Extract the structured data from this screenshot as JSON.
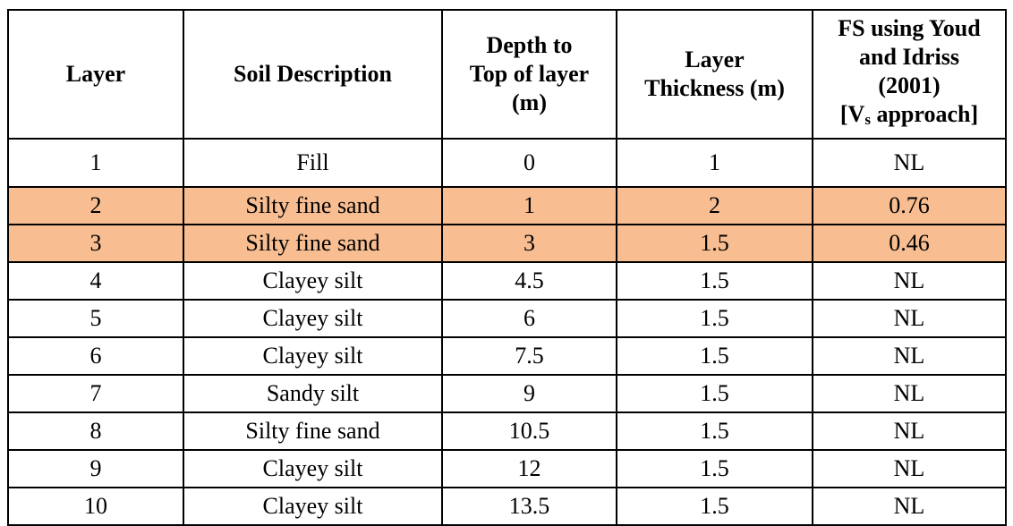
{
  "table": {
    "headers": {
      "layer": "Layer",
      "soil_description": "Soil Description",
      "depth_line1": "Depth to",
      "depth_line2": "Top of layer",
      "depth_line3": "(m)",
      "thickness_line1": "Layer",
      "thickness_line2": "Thickness (m)",
      "fs_line1": "FS using Youd",
      "fs_line2": "and Idriss",
      "fs_line3": "(2001)",
      "fs_line4_prefix": "[V",
      "fs_line4_sub": "s",
      "fs_line4_suffix": " approach]"
    },
    "highlight_color": "#f8be92",
    "rows": [
      {
        "layer": "1",
        "soil": "Fill",
        "depth": "0",
        "thickness": "1",
        "fs": "NL",
        "highlighted": false
      },
      {
        "layer": "2",
        "soil": "Silty fine sand",
        "depth": "1",
        "thickness": "2",
        "fs": "0.76",
        "highlighted": true
      },
      {
        "layer": "3",
        "soil": "Silty fine sand",
        "depth": "3",
        "thickness": "1.5",
        "fs": "0.46",
        "highlighted": true
      },
      {
        "layer": "4",
        "soil": "Clayey silt",
        "depth": "4.5",
        "thickness": "1.5",
        "fs": "NL",
        "highlighted": false
      },
      {
        "layer": "5",
        "soil": "Clayey silt",
        "depth": "6",
        "thickness": "1.5",
        "fs": "NL",
        "highlighted": false
      },
      {
        "layer": "6",
        "soil": "Clayey silt",
        "depth": "7.5",
        "thickness": "1.5",
        "fs": "NL",
        "highlighted": false
      },
      {
        "layer": "7",
        "soil": "Sandy silt",
        "depth": "9",
        "thickness": "1.5",
        "fs": "NL",
        "highlighted": false
      },
      {
        "layer": "8",
        "soil": "Silty fine sand",
        "depth": "10.5",
        "thickness": "1.5",
        "fs": "NL",
        "highlighted": false
      },
      {
        "layer": "9",
        "soil": "Clayey silt",
        "depth": "12",
        "thickness": "1.5",
        "fs": "NL",
        "highlighted": false
      },
      {
        "layer": "10",
        "soil": "Clayey silt",
        "depth": "13.5",
        "thickness": "1.5",
        "fs": "NL",
        "highlighted": false
      }
    ]
  }
}
